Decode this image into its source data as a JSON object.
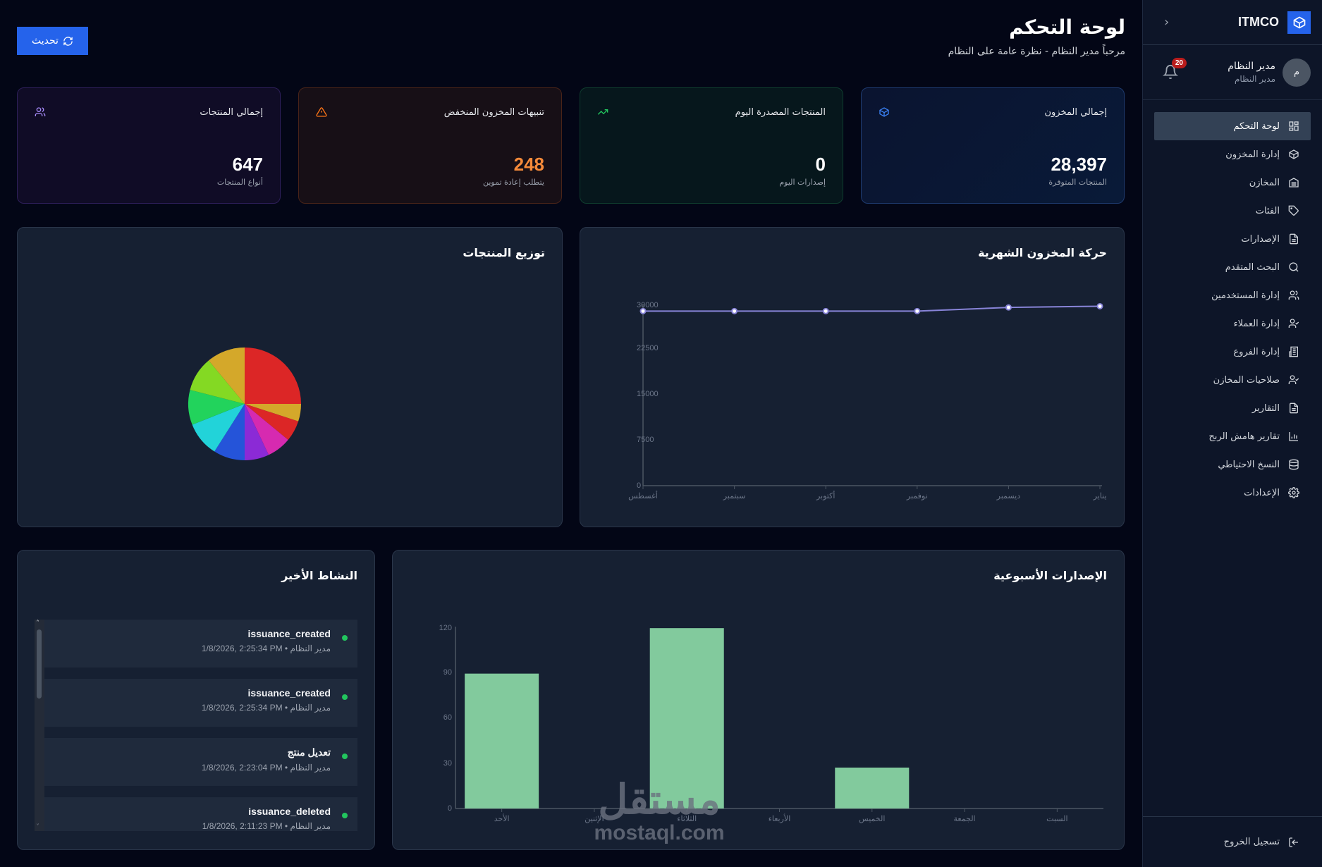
{
  "sidebar": {
    "brand": "ITMCO",
    "user": {
      "name": "مدير النظام",
      "role": "مدير النظام",
      "avatar_initial": "م"
    },
    "notifications_count": "20",
    "items": [
      {
        "label": "لوحة التحكم",
        "icon": "dashboard-grid-icon",
        "active": true
      },
      {
        "label": "إدارة المخزون",
        "icon": "box-icon"
      },
      {
        "label": "المخازن",
        "icon": "warehouse-icon"
      },
      {
        "label": "الفئات",
        "icon": "tag-icon"
      },
      {
        "label": "الإصدارات",
        "icon": "file-icon"
      },
      {
        "label": "البحث المتقدم",
        "icon": "search-icon"
      },
      {
        "label": "إدارة المستخدمين",
        "icon": "users-icon"
      },
      {
        "label": "إدارة العملاء",
        "icon": "user-check-icon"
      },
      {
        "label": "إدارة الفروع",
        "icon": "building-icon"
      },
      {
        "label": "صلاحيات المخازن",
        "icon": "user-check-icon"
      },
      {
        "label": "التقارير",
        "icon": "file-text-icon"
      },
      {
        "label": "تقارير هامش الربح",
        "icon": "bar-chart-icon"
      },
      {
        "label": "النسخ الاحتياطي",
        "icon": "database-icon"
      },
      {
        "label": "الإعدادات",
        "icon": "gear-icon"
      }
    ],
    "logout": "تسجيل الخروج"
  },
  "header": {
    "title": "لوحة التحكم",
    "subtitle": "مرحباً مدير النظام - نظرة عامة على النظام",
    "refresh_label": "تحديث"
  },
  "stats": [
    {
      "label": "إجمالي المخزون",
      "value": "28,397",
      "sub": "المنتجات المتوفرة",
      "icon": "box-icon",
      "color": "#3b82f6"
    },
    {
      "label": "المنتجات المصدرة اليوم",
      "value": "0",
      "sub": "إصدارات اليوم",
      "icon": "trending-up-icon",
      "color": "#22c55e"
    },
    {
      "label": "تنبيهات المخزون المنخفض",
      "value": "248",
      "sub": "يتطلب إعادة تموين",
      "icon": "warning-icon",
      "color": "#f97316"
    },
    {
      "label": "إجمالي المنتجات",
      "value": "647",
      "sub": "أنواع المنتجات",
      "icon": "users-icon",
      "color": "#a78bfa"
    }
  ],
  "panels": {
    "monthly_title": "حركة المخزون الشهرية",
    "distribution_title": "توزيع المنتجات",
    "weekly_title": "الإصدارات الأسبوعية",
    "activity_title": "النشاط الأخير"
  },
  "activity": [
    {
      "title": "issuance_created",
      "user": "مدير النظام",
      "time": "1/8/2026, 2:25:34 PM"
    },
    {
      "title": "issuance_created",
      "user": "مدير النظام",
      "time": "1/8/2026, 2:25:34 PM"
    },
    {
      "title": "تعديل منتج",
      "user": "مدير النظام",
      "time": "1/8/2026, 2:23:04 PM"
    },
    {
      "title": "issuance_deleted",
      "user": "مدير النظام",
      "time": "1/8/2026, 2:11:23 PM"
    }
  ],
  "chart_data": [
    {
      "type": "line",
      "title": "حركة المخزون الشهرية",
      "categories": [
        "أغسطس",
        "سبتمبر",
        "أكتوبر",
        "نوفمبر",
        "ديسمبر",
        "يناير"
      ],
      "values": [
        28800,
        28800,
        28800,
        28800,
        29400,
        29600
      ],
      "yticks": [
        0,
        7500,
        15000,
        22500,
        30000
      ],
      "ylim": [
        0,
        30000
      ],
      "color": "#8884d8",
      "grid": false
    },
    {
      "type": "pie",
      "title": "توزيع المنتجات",
      "values": [
        25,
        5,
        6,
        7,
        7,
        9,
        10,
        10,
        10,
        11
      ],
      "colors": [
        "#dc2626",
        "#d4a82a",
        "#dc2626",
        "#d62ab0",
        "#8b2ad6",
        "#2554d9",
        "#22d3d9",
        "#22d35c",
        "#84d923",
        "#d4a82a"
      ]
    },
    {
      "type": "bar",
      "title": "الإصدارات الأسبوعية",
      "categories": [
        "الأحد",
        "الإثنين",
        "الثلاثاء",
        "الأربعاء",
        "الخميس",
        "الجمعة",
        "السبت"
      ],
      "values": [
        89,
        0,
        119,
        0,
        27,
        0,
        0
      ],
      "yticks": [
        0,
        30,
        60,
        90,
        120
      ],
      "ylim": [
        0,
        120
      ],
      "color": "#82ca9d"
    }
  ],
  "watermark": {
    "line1": "مستقل",
    "line2": "mostaql.com"
  }
}
